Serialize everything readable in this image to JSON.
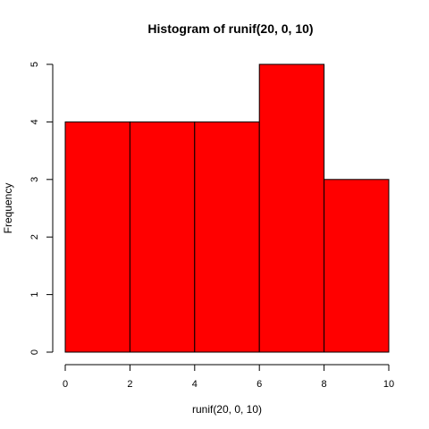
{
  "chart_data": {
    "type": "bar",
    "title": "Histogram of runif(20, 0, 10)",
    "xlabel": "runif(20, 0, 10)",
    "ylabel": "Frequency",
    "bins": [
      {
        "start": 0,
        "end": 2,
        "count": 4
      },
      {
        "start": 2,
        "end": 4,
        "count": 4
      },
      {
        "start": 4,
        "end": 6,
        "count": 4
      },
      {
        "start": 6,
        "end": 8,
        "count": 5
      },
      {
        "start": 8,
        "end": 10,
        "count": 3
      }
    ],
    "xlim": [
      0,
      10
    ],
    "ylim": [
      0,
      5
    ],
    "x_ticks": [
      "0",
      "2",
      "4",
      "6",
      "8",
      "10"
    ],
    "y_ticks": [
      "0",
      "1",
      "2",
      "3",
      "4",
      "5"
    ],
    "bar_color": "#ff0000",
    "grid": false,
    "legend": "none"
  }
}
